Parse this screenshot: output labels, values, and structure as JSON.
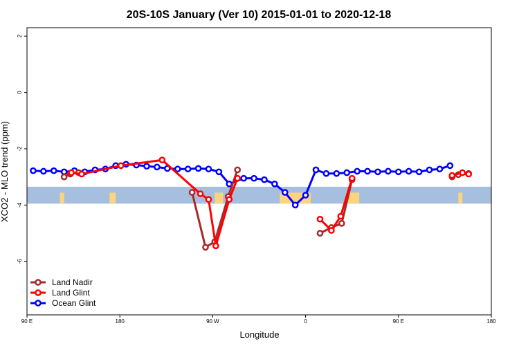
{
  "chart_data": {
    "type": "line",
    "title": "20S-10S January (Ver 10)   2015-01-01 to 2020-12-18",
    "xlabel": "Longitude",
    "ylabel": "XCO2 - MLO trend (ppm)",
    "x_tick_labels": [
      "90 E",
      "180",
      "90 W",
      "0",
      "90 E",
      "180"
    ],
    "x_tick_values": [
      90,
      180,
      270,
      360,
      450,
      540
    ],
    "xlim": [
      90,
      540
    ],
    "y_tick_labels": [
      "2",
      "0",
      "-2",
      "-4",
      "-6"
    ],
    "y_tick_values": [
      2,
      0,
      -2,
      -4,
      -6
    ],
    "ylim": [
      -7.9,
      2.3
    ],
    "grid": false,
    "legend_position": "bottom-left",
    "land_band": {
      "y_range": [
        -3.95,
        -3.35
      ],
      "ocean_color": "#a7bfdf",
      "land_color": "#fbd57e",
      "land_segments": [
        [
          122,
          126
        ],
        [
          170,
          176
        ],
        [
          272,
          280
        ],
        [
          335,
          365
        ],
        [
          400,
          412
        ],
        [
          508,
          512
        ]
      ]
    },
    "series": [
      {
        "name": "Land Nadir",
        "color": "#a52a2a",
        "points": [
          [
            126,
            -3.0
          ],
          [
            132,
            -2.9
          ],
          [
            140,
            -2.85
          ],
          [
            250,
            -3.55
          ],
          [
            263,
            -5.5
          ],
          [
            272,
            -5.3
          ],
          [
            285,
            -3.7
          ],
          [
            294,
            -2.75
          ],
          [
            374,
            -5.0
          ],
          [
            385,
            -4.8
          ],
          [
            395,
            -4.65
          ],
          [
            405,
            -3.1
          ],
          [
            502,
            -3.0
          ],
          [
            508,
            -2.92
          ],
          [
            518,
            -2.88
          ]
        ]
      },
      {
        "name": "Land Glint",
        "color": "#ff0000",
        "points": [
          [
            133,
            -2.85
          ],
          [
            143,
            -2.9
          ],
          [
            181,
            -2.6
          ],
          [
            221,
            -2.4
          ],
          [
            258,
            -3.6
          ],
          [
            266,
            -3.8
          ],
          [
            273,
            -5.45
          ],
          [
            286,
            -3.8
          ],
          [
            294,
            -3.05
          ],
          [
            374,
            -4.5
          ],
          [
            385,
            -4.9
          ],
          [
            394,
            -4.4
          ],
          [
            405,
            -3.05
          ],
          [
            502,
            -2.95
          ],
          [
            512,
            -2.85
          ],
          [
            518,
            -2.9
          ]
        ]
      },
      {
        "name": "Ocean Glint",
        "color": "#0000ff",
        "points": [
          [
            96,
            -2.78
          ],
          [
            106,
            -2.8
          ],
          [
            116,
            -2.78
          ],
          [
            126,
            -2.82
          ],
          [
            136,
            -2.78
          ],
          [
            146,
            -2.82
          ],
          [
            156,
            -2.75
          ],
          [
            166,
            -2.72
          ],
          [
            176,
            -2.6
          ],
          [
            186,
            -2.55
          ],
          [
            196,
            -2.58
          ],
          [
            206,
            -2.62
          ],
          [
            216,
            -2.65
          ],
          [
            226,
            -2.7
          ],
          [
            236,
            -2.72
          ],
          [
            246,
            -2.72
          ],
          [
            256,
            -2.7
          ],
          [
            266,
            -2.72
          ],
          [
            276,
            -2.82
          ],
          [
            286,
            -3.25
          ],
          [
            300,
            -3.05
          ],
          [
            310,
            -3.05
          ],
          [
            320,
            -3.1
          ],
          [
            330,
            -3.25
          ],
          [
            340,
            -3.55
          ],
          [
            350,
            -4.0
          ],
          [
            360,
            -3.65
          ],
          [
            370,
            -2.75
          ],
          [
            380,
            -2.88
          ],
          [
            390,
            -2.88
          ],
          [
            400,
            -2.85
          ],
          [
            410,
            -2.8
          ],
          [
            420,
            -2.8
          ],
          [
            430,
            -2.82
          ],
          [
            440,
            -2.8
          ],
          [
            450,
            -2.82
          ],
          [
            460,
            -2.8
          ],
          [
            470,
            -2.82
          ],
          [
            480,
            -2.75
          ],
          [
            490,
            -2.72
          ],
          [
            500,
            -2.6
          ]
        ]
      }
    ]
  }
}
